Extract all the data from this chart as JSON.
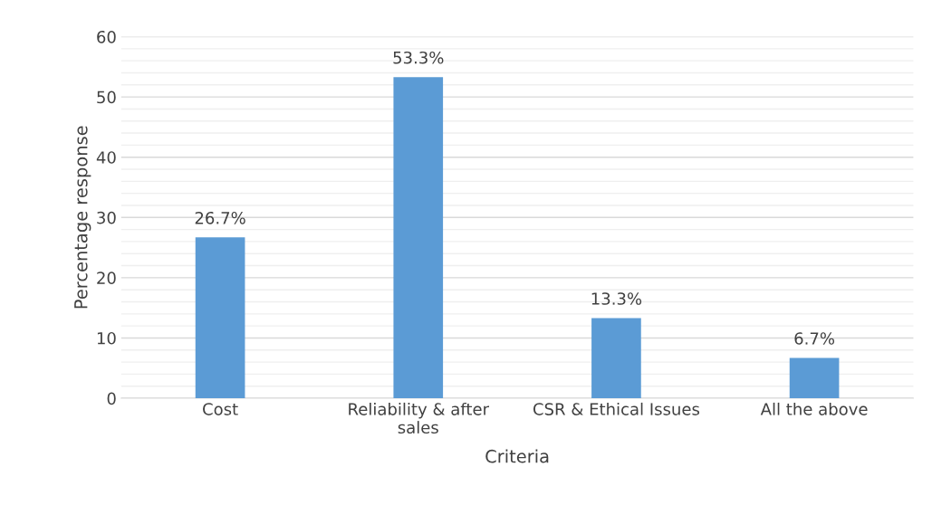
{
  "chart_data": {
    "type": "bar",
    "xlabel": "Criteria",
    "ylabel": "Percentage response",
    "categories": [
      "Cost",
      "Reliability & after\nsales",
      "CSR & Ethical Issues",
      "All the above"
    ],
    "values": [
      26.7,
      53.3,
      13.3,
      6.7
    ],
    "color": "#5b9bd5",
    "value_labels": [
      "26.7%",
      "53.3%",
      "13.3%",
      "6.7%"
    ],
    "ylim": [
      0,
      60
    ],
    "yticks": [
      0,
      {
        "value": 2,
        "label": null
      },
      {
        "value": 4,
        "label": null
      },
      {
        "value": 6,
        "label": null
      },
      {
        "value": 8,
        "label": null
      },
      10,
      {
        "value": 12,
        "label": null
      },
      {
        "value": 14,
        "label": null
      },
      {
        "value": 16,
        "label": null
      },
      {
        "value": 18,
        "label": null
      },
      20,
      {
        "value": 22,
        "label": null
      },
      {
        "value": 24,
        "label": null
      },
      {
        "value": 26,
        "label": null
      },
      {
        "value": 28,
        "label": null
      },
      30,
      {
        "value": 32,
        "label": null
      },
      {
        "value": 34,
        "label": null
      },
      {
        "value": 36,
        "label": null
      },
      {
        "value": 38,
        "label": null
      },
      40,
      {
        "value": 42,
        "label": null
      },
      {
        "value": 44,
        "label": null
      },
      {
        "value": 46,
        "label": null
      },
      {
        "value": 48,
        "label": null
      },
      50,
      {
        "value": 52,
        "label": null
      },
      {
        "value": 54,
        "label": null
      },
      {
        "value": 56,
        "label": null
      },
      {
        "value": 58,
        "label": null
      },
      60
    ],
    "grid": "y"
  }
}
